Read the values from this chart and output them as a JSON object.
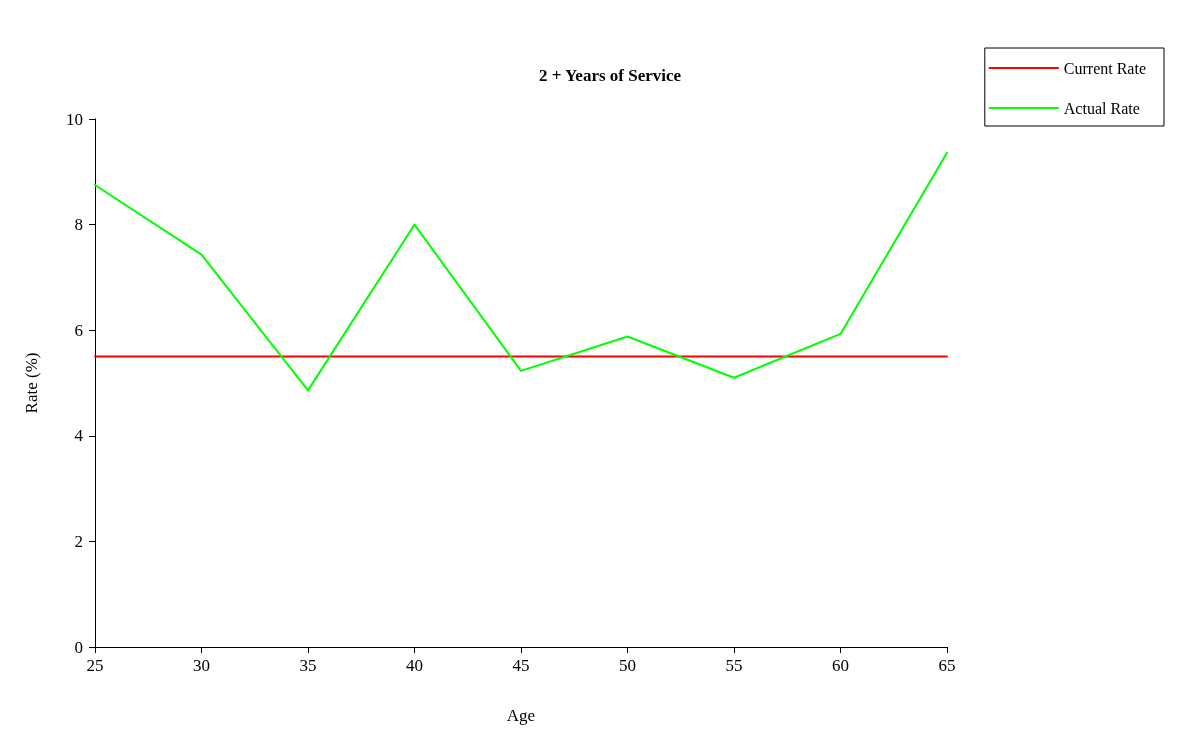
{
  "chart_data": {
    "type": "line",
    "title": "2 + Years of Service",
    "xlabel": "Age",
    "ylabel": "Rate (%)",
    "x": [
      25,
      30,
      35,
      40,
      45,
      50,
      55,
      60,
      65
    ],
    "series": [
      {
        "name": "Current Rate",
        "color": "#ff0000",
        "values": [
          5.5,
          5.5,
          5.5,
          5.5,
          5.5,
          5.5,
          5.5,
          5.5,
          5.5
        ]
      },
      {
        "name": "Actual Rate",
        "color": "#00ff00",
        "values": [
          8.75,
          7.43,
          4.86,
          8.0,
          5.23,
          5.88,
          5.1,
          5.93,
          9.36
        ]
      }
    ],
    "xlim": [
      25,
      65
    ],
    "xticks": [
      25,
      30,
      35,
      40,
      45,
      50,
      55,
      60,
      65
    ],
    "ylim": [
      0,
      10
    ],
    "yticks": [
      0,
      2,
      4,
      6,
      8,
      10
    ],
    "grid": false,
    "legend": "top right",
    "marker": "none",
    "line_style": "solid"
  }
}
